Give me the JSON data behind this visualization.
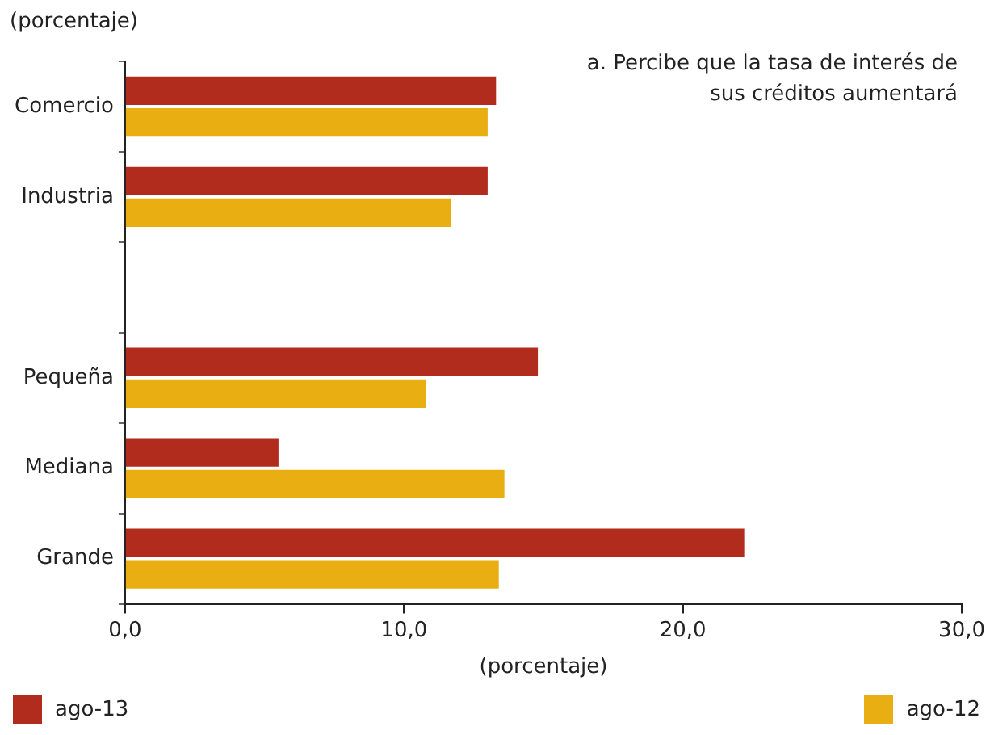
{
  "chart_data": {
    "type": "bar",
    "orientation": "horizontal",
    "title": "a. Percibe que la tasa de interés de sus créditos aumentará",
    "xlabel": "(porcentaje)",
    "annotations": [
      "(porcentaje)"
    ],
    "categories": [
      "Comercio",
      "Industria",
      null,
      "Pequeña",
      "Mediana",
      "Grande"
    ],
    "series": [
      {
        "name": "ago-13",
        "color": "#b22c1e",
        "values": [
          13.3,
          13.0,
          null,
          14.8,
          5.5,
          22.2
        ]
      },
      {
        "name": "ago-12",
        "color": "#e9ae12",
        "values": [
          13.0,
          11.7,
          null,
          10.8,
          13.6,
          13.4
        ]
      }
    ],
    "xlim": [
      0,
      30
    ],
    "xticks": [
      {
        "value": 0,
        "label": "0,0"
      },
      {
        "value": 10,
        "label": "10,0"
      },
      {
        "value": 20,
        "label": "20,0"
      },
      {
        "value": 30,
        "label": "30,0"
      }
    ],
    "grid": false,
    "legend": "bottom"
  }
}
